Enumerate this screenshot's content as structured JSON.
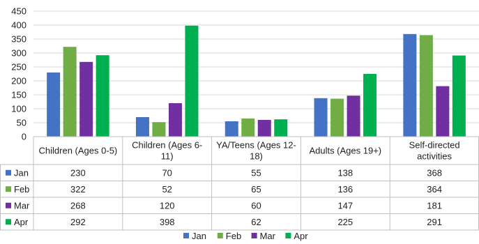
{
  "chart_data": {
    "type": "bar",
    "categories": [
      [
        "Children (Ages 0-5)"
      ],
      [
        "Children (Ages 6-",
        "11)"
      ],
      [
        "YA/Teens (Ages 12-",
        "18)"
      ],
      [
        "Adults (Ages 19+)"
      ],
      [
        "Self-directed",
        "activities"
      ]
    ],
    "series": [
      {
        "name": "Jan",
        "color": "#4472C4",
        "values": [
          230,
          70,
          55,
          138,
          368
        ]
      },
      {
        "name": "Feb",
        "color": "#70AD47",
        "values": [
          322,
          52,
          65,
          136,
          364
        ]
      },
      {
        "name": "Mar",
        "color": "#7030A0",
        "values": [
          268,
          120,
          60,
          147,
          181
        ]
      },
      {
        "name": "Apr",
        "color": "#00B050",
        "values": [
          292,
          398,
          62,
          225,
          291
        ]
      }
    ],
    "ylim": [
      0,
      450
    ],
    "yticks": [
      0,
      50,
      100,
      150,
      200,
      250,
      300,
      350,
      400,
      450
    ],
    "grid": true,
    "legend_position": "bottom",
    "data_table": true
  }
}
